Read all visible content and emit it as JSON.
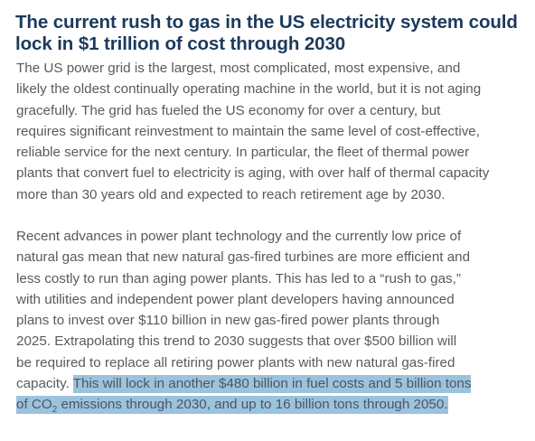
{
  "article": {
    "title": "The current rush to gas in the US electricity system could lock in $1 trillion of cost through 2030",
    "paragraph_1": [
      "The US power grid is the largest, most complicated, most expensive, and",
      "likely the oldest continually operating machine in the world, but it is not aging",
      "gracefully. The grid has fueled the US economy for over a century, but",
      "requires significant reinvestment to maintain the same level of cost-effective,",
      "reliable service for the next century. In particular, the fleet of thermal power",
      "plants that convert fuel to electricity is aging, with over half of thermal capacity",
      "more than 30 years old and expected to reach retirement age by 2030."
    ],
    "paragraph_2": [
      "Recent advances in power plant technology and the currently low price of",
      "natural gas mean that new natural gas-fired turbines are more efficient and",
      "less costly to run than aging power plants. This has led to a “rush to gas,”",
      "with utilities and independent power plant developers having announced",
      "plans to invest over $110 billion in new gas-fired power plants through",
      "2025. Extrapolating this trend to 2030 suggests that over $500 billion will",
      "be required to replace all retiring power plants with new natural gas-fired"
    ],
    "paragraph_2_tail": {
      "prefix": "capacity. ",
      "highlight_line_1": "This will lock in another $480 billion in fuel costs and 5 billion tons",
      "highlight_line_2_pre": "of CO",
      "highlight_subscript": "2",
      "highlight_line_2_post": " emissions through 2030, and up to 16 billion tons through 2050."
    }
  },
  "colors": {
    "heading": "#1b3a5c",
    "body_text": "#5a5a5a",
    "highlight": "#9cc3de"
  }
}
